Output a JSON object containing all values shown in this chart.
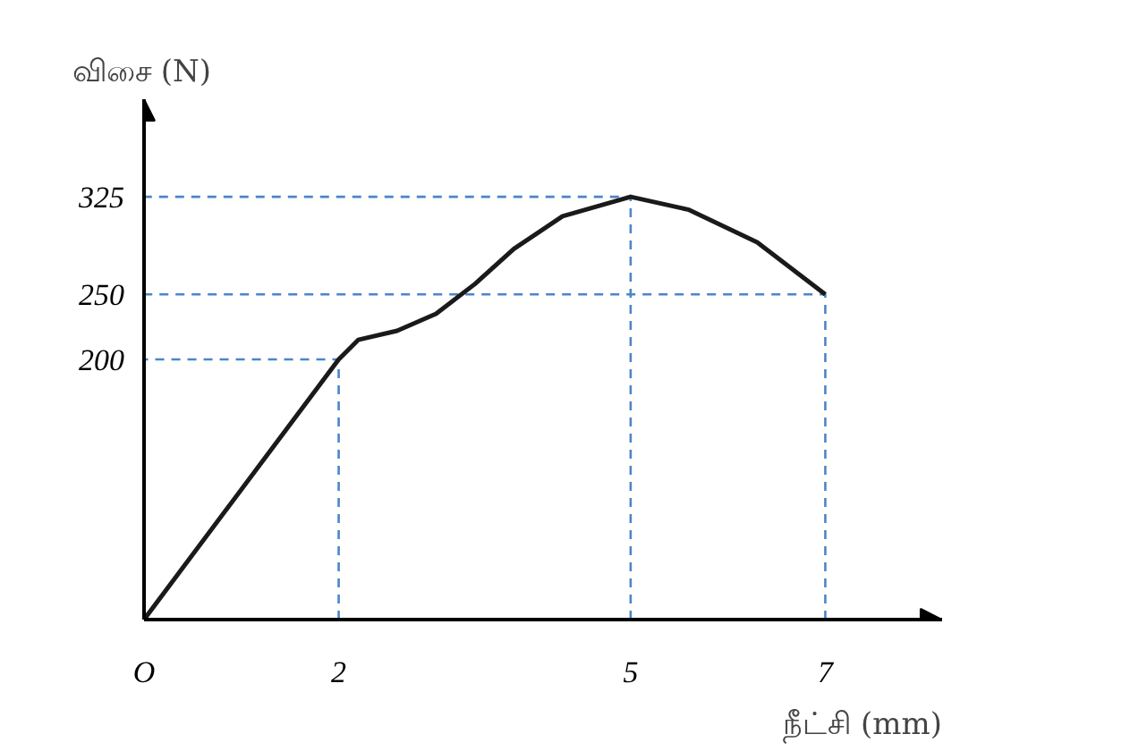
{
  "chart_data": {
    "type": "line",
    "xlabel": "நீட்சி (mm)",
    "ylabel": "விசை (N)",
    "xlim": [
      0,
      8.2
    ],
    "ylim": [
      0,
      400
    ],
    "xticks": [
      {
        "value": 0,
        "label": "O"
      },
      2,
      5,
      7
    ],
    "yticks": [
      200,
      250,
      325
    ],
    "grid": false,
    "series": [
      {
        "x": [
          2,
          2,
          0
        ],
        "values": [
          0,
          200,
          200
        ],
        "color": "#4a86c8",
        "line_style": "dashed"
      },
      {
        "x": [
          5,
          5,
          0
        ],
        "values": [
          0,
          325,
          325
        ],
        "color": "#4a86c8",
        "line_style": "dashed"
      },
      {
        "x": [
          7,
          7,
          0
        ],
        "values": [
          0,
          250,
          250
        ],
        "color": "#4a86c8",
        "line_style": "dashed"
      },
      {
        "x": [
          0,
          2,
          2.2,
          2.6,
          3.0,
          3.4,
          3.8,
          4.3,
          5,
          5.6,
          6.3,
          7
        ],
        "values": [
          0,
          200,
          215,
          222,
          235,
          258,
          285,
          310,
          325,
          315,
          290,
          250
        ],
        "color": "#1a1a1a",
        "line_style": "solid"
      }
    ]
  }
}
